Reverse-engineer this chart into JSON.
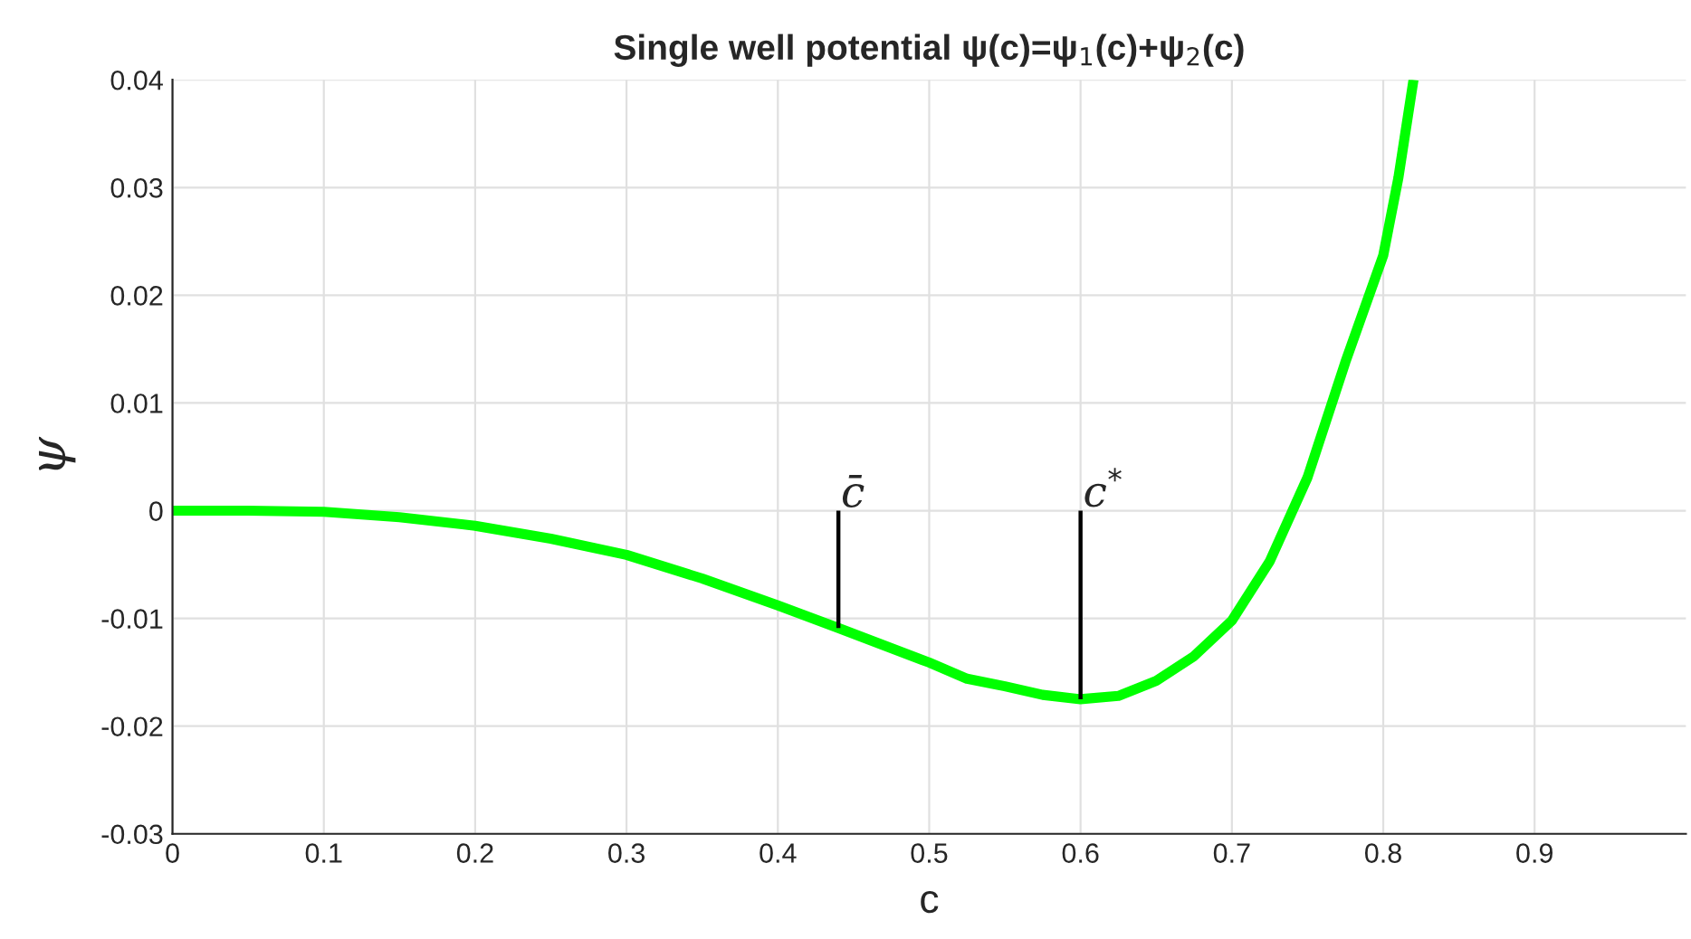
{
  "chart_data": {
    "type": "line",
    "title": "Single well potential ψ(c)=ψ$_{1}$(c)+ψ$_{2}$(c)",
    "xlabel": "c",
    "ylabel": "ψ",
    "series": [
      {
        "color": "#00ff00",
        "x": [
          0,
          0.05,
          0.1,
          0.15,
          0.2,
          0.25,
          0.3,
          0.35,
          0.4,
          0.44,
          0.5,
          0.525,
          0.55,
          0.575,
          0.6,
          0.625,
          0.65,
          0.675,
          0.7,
          0.725,
          0.75,
          0.775,
          0.8,
          0.81,
          0.82
        ],
        "values": [
          0,
          0,
          -0.0001,
          -0.0006,
          -0.0014,
          -0.0026,
          -0.0041,
          -0.0063,
          -0.0088,
          -0.0109,
          -0.0141,
          -0.0156,
          -0.0163,
          -0.0171,
          -0.0175,
          -0.0172,
          -0.0158,
          -0.0135,
          -0.0102,
          -0.0047,
          0.0031,
          0.0138,
          0.0237,
          0.0309,
          0.04
        ]
      },
      {
        "color": "#000000",
        "x": [
          0.44,
          0.44
        ],
        "values": [
          -0.0109,
          0
        ]
      },
      {
        "color": "#000000",
        "x": [
          0.6,
          0.6
        ],
        "values": [
          -0.0175,
          0
        ]
      }
    ],
    "annotations": [
      {
        "text": "c̄",
        "x": 0.44,
        "y": 0
      },
      {
        "text": "c$^{*}$",
        "x": 0.6,
        "y": 0
      }
    ],
    "xlim": [
      0,
      1
    ],
    "ylim": [
      -0.03,
      0.04
    ],
    "xticks": [
      0,
      0.1,
      0.2,
      0.3,
      0.4,
      0.5,
      0.6,
      0.7,
      0.8,
      0.9
    ],
    "yticks": [
      -0.03,
      -0.02,
      -0.01,
      0,
      0.01,
      0.02,
      0.03,
      0.04
    ],
    "grid": true
  }
}
